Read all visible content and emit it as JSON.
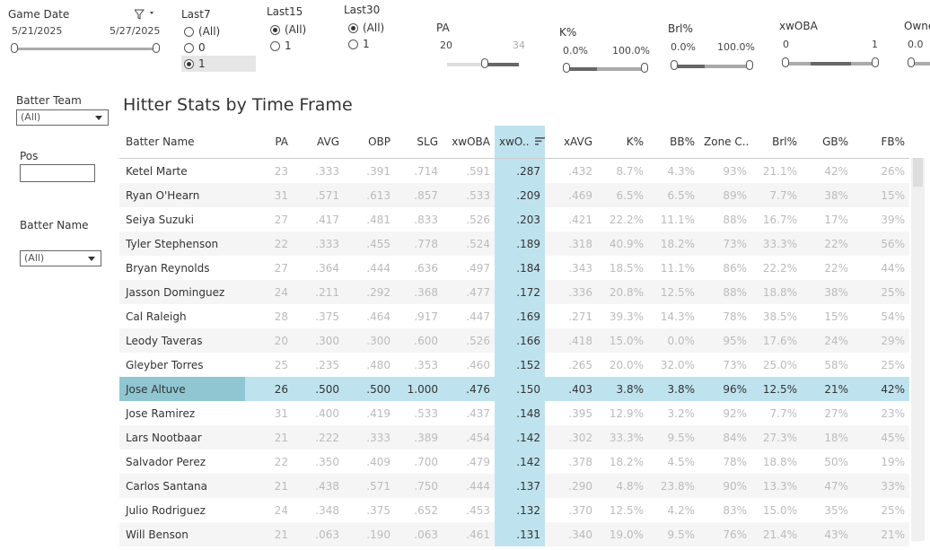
{
  "filters": {
    "game_date": {
      "label": "Game Date",
      "start": "5/21/2025",
      "end": "5/27/2025"
    },
    "last7": {
      "label": "Last7",
      "options": [
        {
          "label": "(All)",
          "selected": false
        },
        {
          "label": "0",
          "selected": false
        },
        {
          "label": "1",
          "selected": true
        }
      ]
    },
    "last15": {
      "label": "Last15",
      "options": [
        {
          "label": "(All)",
          "selected": true
        },
        {
          "label": "1",
          "selected": false
        }
      ]
    },
    "last30": {
      "label": "Last30",
      "options": [
        {
          "label": "(All)",
          "selected": true
        },
        {
          "label": "1",
          "selected": false
        }
      ]
    },
    "pa": {
      "label": "PA",
      "min": "20",
      "max": "34"
    },
    "k_pct": {
      "label": "K%",
      "min": "0.0%",
      "max": "100.0%"
    },
    "brl_pct": {
      "label": "Brl%",
      "min": "0.0%",
      "max": "100.0%"
    },
    "xwoba": {
      "label": "xwOBA",
      "min": "0",
      "max": "1"
    },
    "owner": {
      "label": "Owne",
      "min": "0.0"
    },
    "batter_team": {
      "label": "Batter Team",
      "value": "(All)"
    },
    "pos": {
      "label": "Pos",
      "value": ""
    },
    "batter_name": {
      "label": "Batter Name",
      "value": "(All)"
    }
  },
  "table": {
    "title": "Hitter Stats by Time Frame",
    "columns": [
      "Batter Name",
      "PA",
      "AVG",
      "OBP",
      "SLG",
      "xwOBA",
      "xwO..",
      "xAVG",
      "K%",
      "BB%",
      "Zone C..",
      "Brl%",
      "GB%",
      "FB%"
    ],
    "rows": [
      [
        "Ketel Marte",
        "23",
        ".333",
        ".391",
        ".714",
        ".591",
        ".287",
        ".432",
        "8.7%",
        "4.3%",
        "93%",
        "21.1%",
        "42%",
        "26%"
      ],
      [
        "Ryan O'Hearn",
        "31",
        ".571",
        ".613",
        ".857",
        ".533",
        ".209",
        ".469",
        "6.5%",
        "6.5%",
        "89%",
        "7.7%",
        "38%",
        "15%"
      ],
      [
        "Seiya Suzuki",
        "27",
        ".417",
        ".481",
        ".833",
        ".526",
        ".203",
        ".421",
        "22.2%",
        "11.1%",
        "88%",
        "16.7%",
        "17%",
        "39%"
      ],
      [
        "Tyler Stephenson",
        "22",
        ".333",
        ".455",
        ".778",
        ".524",
        ".189",
        ".318",
        "40.9%",
        "18.2%",
        "73%",
        "33.3%",
        "22%",
        "56%"
      ],
      [
        "Bryan Reynolds",
        "27",
        ".364",
        ".444",
        ".636",
        ".497",
        ".184",
        ".343",
        "18.5%",
        "11.1%",
        "86%",
        "22.2%",
        "22%",
        "44%"
      ],
      [
        "Jasson Dominguez",
        "24",
        ".211",
        ".292",
        ".368",
        ".477",
        ".172",
        ".336",
        "20.8%",
        "12.5%",
        "88%",
        "18.8%",
        "38%",
        "25%"
      ],
      [
        "Cal Raleigh",
        "28",
        ".375",
        ".464",
        ".917",
        ".447",
        ".169",
        ".271",
        "39.3%",
        "14.3%",
        "78%",
        "38.5%",
        "15%",
        "54%"
      ],
      [
        "Leody Taveras",
        "20",
        ".300",
        ".300",
        ".600",
        ".526",
        ".166",
        ".418",
        "15.0%",
        "0.0%",
        "95%",
        "17.6%",
        "24%",
        "29%"
      ],
      [
        "Gleyber Torres",
        "25",
        ".235",
        ".480",
        ".353",
        ".460",
        ".152",
        ".265",
        "20.0%",
        "32.0%",
        "73%",
        "25.0%",
        "58%",
        "25%"
      ],
      [
        "Jose Altuve",
        "26",
        ".500",
        ".500",
        "1.000",
        ".476",
        ".150",
        ".403",
        "3.8%",
        "3.8%",
        "96%",
        "12.5%",
        "21%",
        "42%"
      ],
      [
        "Jose Ramirez",
        "31",
        ".400",
        ".419",
        ".533",
        ".437",
        ".148",
        ".395",
        "12.9%",
        "3.2%",
        "92%",
        "7.7%",
        "27%",
        "23%"
      ],
      [
        "Lars Nootbaar",
        "21",
        ".222",
        ".333",
        ".389",
        ".454",
        ".142",
        ".302",
        "33.3%",
        "9.5%",
        "84%",
        "27.3%",
        "18%",
        "45%"
      ],
      [
        "Salvador Perez",
        "22",
        ".350",
        ".409",
        ".700",
        ".479",
        ".142",
        ".378",
        "18.2%",
        "4.5%",
        "78%",
        "18.8%",
        "50%",
        "19%"
      ],
      [
        "Carlos Santana",
        "21",
        ".438",
        ".571",
        ".750",
        ".444",
        ".137",
        ".290",
        "4.8%",
        "23.8%",
        "90%",
        "13.3%",
        "47%",
        "33%"
      ],
      [
        "Julio Rodriguez",
        "24",
        ".348",
        ".375",
        ".652",
        ".453",
        ".132",
        ".370",
        "12.5%",
        "4.2%",
        "83%",
        "15.0%",
        "35%",
        "25%"
      ],
      [
        "Will Benson",
        "21",
        ".063",
        ".190",
        ".063",
        ".461",
        ".131",
        ".340",
        "19.0%",
        "9.5%",
        "76%",
        "21.4%",
        "43%",
        "21%"
      ]
    ]
  }
}
